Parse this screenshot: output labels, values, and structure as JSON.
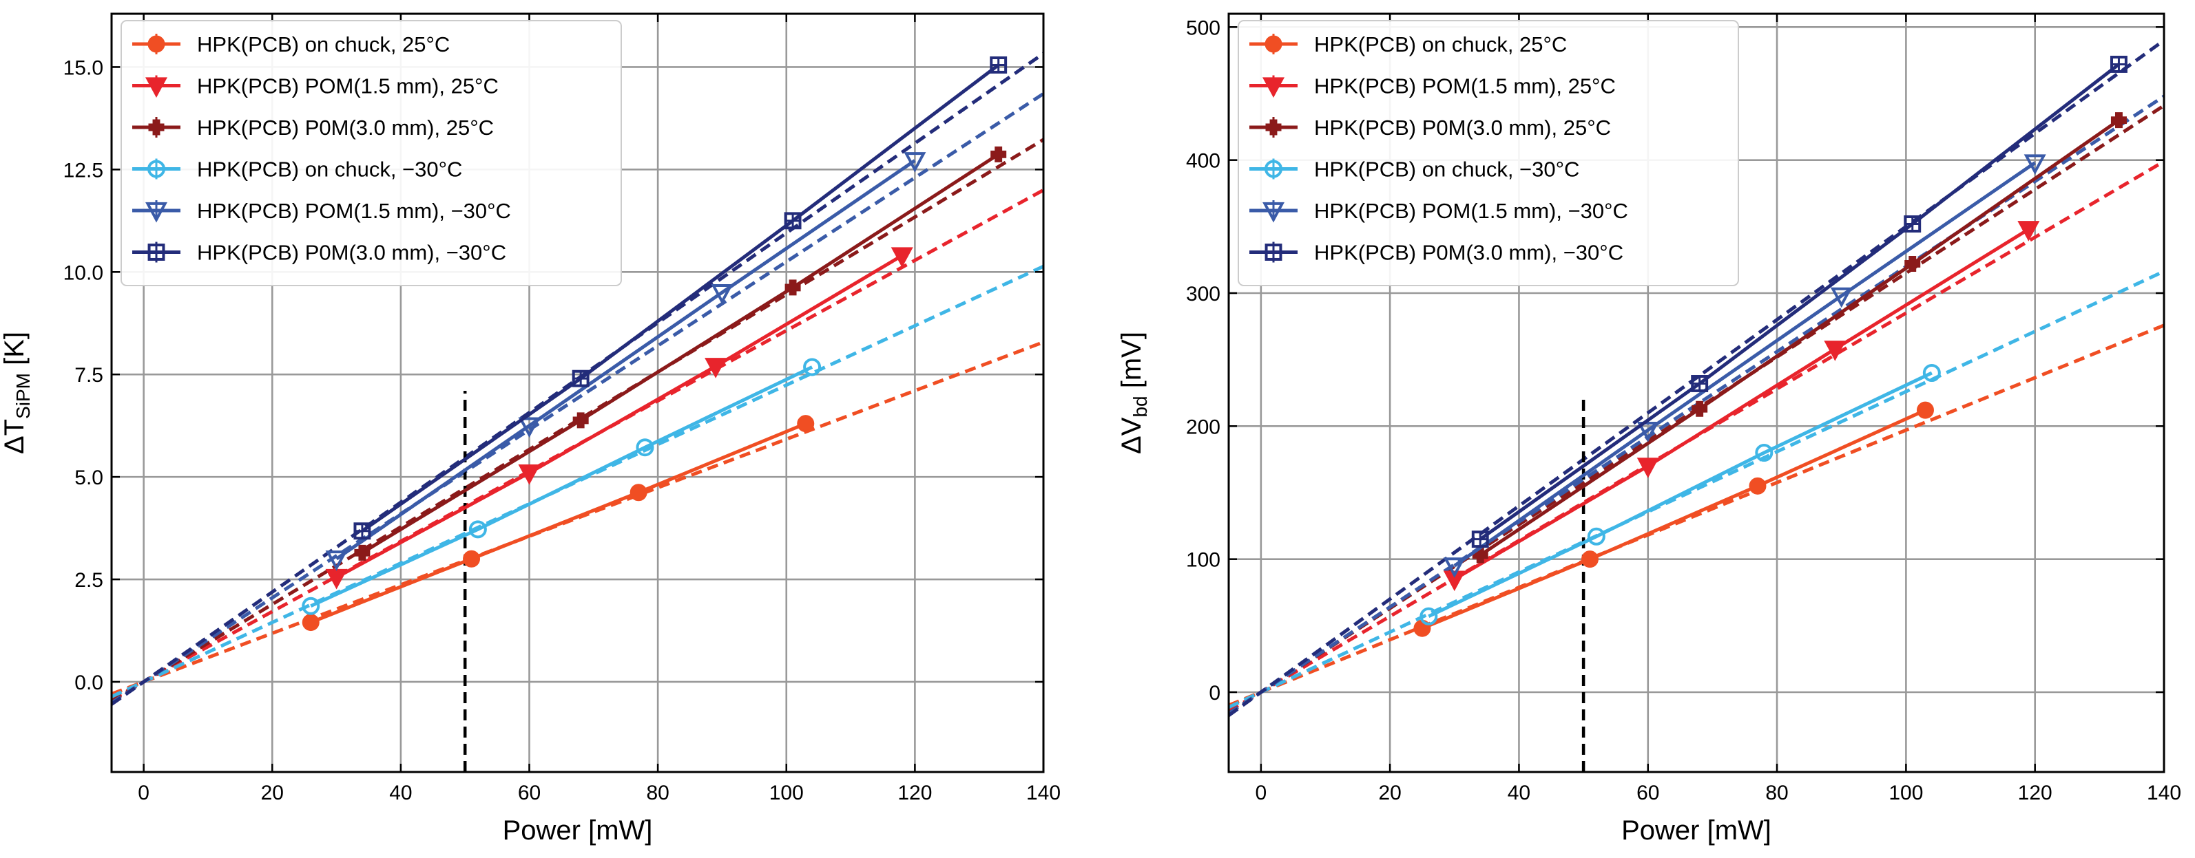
{
  "colors": {
    "onchuck_25": "#f04e23",
    "pom15_25": "#e8242c",
    "pom30_25": "#8b1a1a",
    "onchuck_m30": "#3fb6e6",
    "pom15_m30": "#3a5ba8",
    "pom30_m30": "#232c7a",
    "grid": "#999999",
    "marker_line": "#000000"
  },
  "chart_data": [
    {
      "type": "line",
      "title": "",
      "xlabel": "Power [mW]",
      "ylabel": "ΔT_SiPM [K]",
      "ylabel_main": "ΔT",
      "ylabel_sub": "SiPM",
      "ylabel_unit": " [K]",
      "xlim": [
        -5,
        140
      ],
      "ylim": [
        -2.2,
        16.3
      ],
      "xticks": [
        0,
        20,
        40,
        60,
        80,
        100,
        120,
        140
      ],
      "yticks": [
        0.0,
        2.5,
        5.0,
        7.5,
        10.0,
        12.5,
        15.0
      ],
      "xtick_labels": [
        "0",
        "20",
        "40",
        "60",
        "80",
        "100",
        "120",
        "140"
      ],
      "ytick_labels": [
        "0.0",
        "2.5",
        "5.0",
        "7.5",
        "10.0",
        "12.5",
        "15.0"
      ],
      "vline_x": 50,
      "vline_range": [
        -2.2,
        7.1
      ],
      "legend_position": "top-left",
      "series": [
        {
          "name": "HPK(PCB) on chuck, 25°C",
          "color_key": "onchuck_25",
          "marker": "circle",
          "x": [
            26,
            51,
            77,
            103
          ],
          "y": [
            1.45,
            3.0,
            4.62,
            6.3
          ],
          "fit_slope": 0.0592,
          "fit_x": [
            -5,
            140
          ]
        },
        {
          "name": "HPK(PCB) POM(1.5 mm), 25°C",
          "color_key": "pom15_25",
          "marker": "triangle-down",
          "x": [
            30,
            60,
            89,
            118
          ],
          "y": [
            2.55,
            5.1,
            7.7,
            10.4
          ],
          "fit_slope": 0.0857,
          "fit_x": [
            -5,
            140
          ]
        },
        {
          "name": "HPK(PCB) P0M(3.0 mm), 25°C",
          "color_key": "pom30_25",
          "marker": "plus-filled",
          "x": [
            34,
            68,
            101,
            133
          ],
          "y": [
            3.15,
            6.38,
            9.62,
            12.87
          ],
          "fit_slope": 0.0945,
          "fit_x": [
            -5,
            140
          ]
        },
        {
          "name": "HPK(PCB) on chuck, −30°C",
          "color_key": "onchuck_m30",
          "marker": "circle-open",
          "x": [
            26,
            52,
            78,
            104
          ],
          "y": [
            1.85,
            3.72,
            5.72,
            7.68
          ],
          "fit_slope": 0.0724,
          "fit_x": [
            -5,
            140
          ]
        },
        {
          "name": "HPK(PCB) POM(1.5 mm), −30°C",
          "color_key": "pom15_m30",
          "marker": "triangle-down-open",
          "x": [
            30,
            60,
            90,
            120
          ],
          "y": [
            3.0,
            6.25,
            9.5,
            12.72
          ],
          "fit_slope": 0.1025,
          "fit_x": [
            -5,
            140
          ]
        },
        {
          "name": "HPK(PCB) P0M(3.0 mm), −30°C",
          "color_key": "pom30_m30",
          "marker": "plus-open",
          "x": [
            34,
            68,
            101,
            133
          ],
          "y": [
            3.68,
            7.4,
            11.25,
            15.05
          ],
          "fit_slope": 0.1095,
          "fit_x": [
            -5,
            140
          ]
        }
      ]
    },
    {
      "type": "line",
      "title": "",
      "xlabel": "Power [mW]",
      "ylabel": "ΔV_bd [mV]",
      "ylabel_main": "ΔV",
      "ylabel_sub": "bd",
      "ylabel_unit": " [mV]",
      "xlim": [
        -5,
        140
      ],
      "ylim": [
        -60,
        510
      ],
      "xticks": [
        0,
        20,
        40,
        60,
        80,
        100,
        120,
        140
      ],
      "yticks": [
        0,
        100,
        200,
        300,
        400,
        500
      ],
      "xtick_labels": [
        "0",
        "20",
        "40",
        "60",
        "80",
        "100",
        "120",
        "140"
      ],
      "ytick_labels": [
        "0",
        "100",
        "200",
        "300",
        "400",
        "500"
      ],
      "vline_x": 50,
      "vline_range": [
        -60,
        222
      ],
      "legend_position": "top-left",
      "series": [
        {
          "name": "HPK(PCB) on chuck, 25°C",
          "color_key": "onchuck_25",
          "marker": "circle",
          "x": [
            25,
            51,
            77,
            103
          ],
          "y": [
            48,
            100,
            155,
            212
          ],
          "fit_slope": 1.97,
          "fit_x": [
            -5,
            140
          ]
        },
        {
          "name": "HPK(PCB) POM(1.5 mm), 25°C",
          "color_key": "pom15_25",
          "marker": "triangle-down",
          "x": [
            30,
            60,
            89,
            119
          ],
          "y": [
            85,
            170,
            258,
            348
          ],
          "fit_slope": 2.85,
          "fit_x": [
            -5,
            140
          ]
        },
        {
          "name": "HPK(PCB) P0M(3.0 mm), 25°C",
          "color_key": "pom30_25",
          "marker": "plus-filled",
          "x": [
            34,
            68,
            101,
            133
          ],
          "y": [
            103,
            213,
            322,
            430
          ],
          "fit_slope": 3.15,
          "fit_x": [
            -5,
            140
          ]
        },
        {
          "name": "HPK(PCB) on chuck, −30°C",
          "color_key": "onchuck_m30",
          "marker": "circle-open",
          "x": [
            26,
            52,
            78,
            104
          ],
          "y": [
            57,
            117,
            180,
            240
          ],
          "fit_slope": 2.26,
          "fit_x": [
            -5,
            140
          ]
        },
        {
          "name": "HPK(PCB) POM(1.5 mm), −30°C",
          "color_key": "pom15_m30",
          "marker": "triangle-down-open",
          "x": [
            30,
            60,
            90,
            120
          ],
          "y": [
            95,
            197,
            298,
            398
          ],
          "fit_slope": 3.2,
          "fit_x": [
            -5,
            140
          ]
        },
        {
          "name": "HPK(PCB) P0M(3.0 mm), −30°C",
          "color_key": "pom30_m30",
          "marker": "plus-open",
          "x": [
            34,
            68,
            101,
            133
          ],
          "y": [
            115,
            232,
            352,
            472
          ],
          "fit_slope": 3.5,
          "fit_x": [
            -5,
            140
          ]
        }
      ]
    }
  ]
}
